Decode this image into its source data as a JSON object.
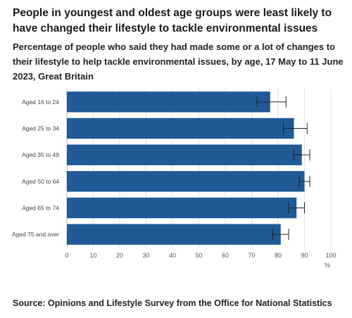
{
  "title": "People in youngest and oldest age groups were least likely to have changed their lifestyle to tackle environmental issues",
  "subtitle": "Percentage of people who said they had made some or a lot of changes to their lifestyle to help tackle environmental issues, by age, 17 May to 11 June 2023, Great Britain",
  "source": "Source: Opinions and Lifestyle Survey from the Office for National Statistics",
  "colors": {
    "bar": "#1f5a96",
    "grid": "#e2e2e2",
    "error": "#222222"
  },
  "chart_data": {
    "type": "bar",
    "orientation": "horizontal",
    "categories": [
      "Aged 16 to 24",
      "Aged 25 to 34",
      "Aged 35 to 49",
      "Aged 50 to 64",
      "Aged 65 to 74",
      "Aged 75 and over"
    ],
    "values": [
      77,
      86,
      89,
      90,
      87,
      81
    ],
    "error_low": [
      72,
      82,
      86,
      88,
      84,
      78
    ],
    "error_high": [
      83,
      91,
      92,
      92,
      90,
      84
    ],
    "xlabel": "%",
    "xlim": [
      0,
      100
    ],
    "xticks": [
      0,
      10,
      20,
      30,
      40,
      50,
      60,
      70,
      80,
      90,
      100
    ],
    "grid": true
  }
}
